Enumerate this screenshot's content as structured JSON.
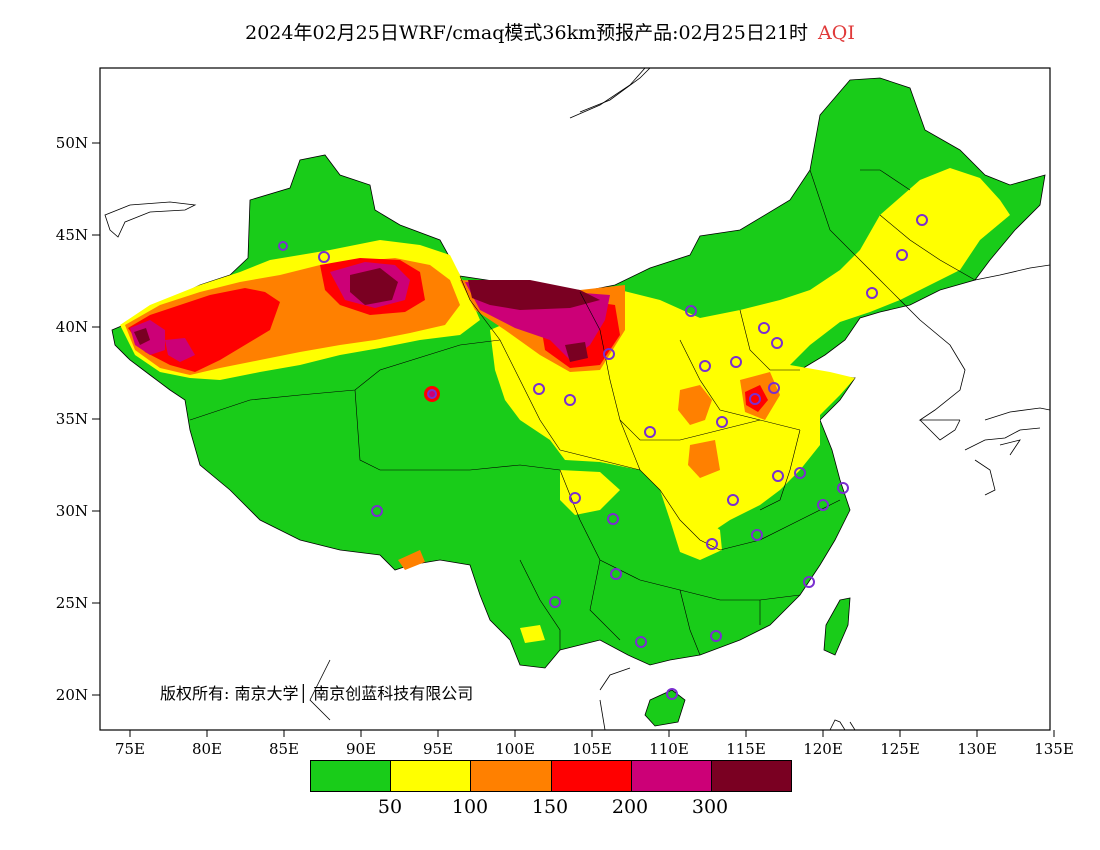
{
  "title": {
    "main": "2024年02月25日WRF/cmaq模式36km预报产品:02月25日21时",
    "product": "AQI"
  },
  "axes": {
    "y_ticks": [
      "50N",
      "45N",
      "40N",
      "35N",
      "30N",
      "25N",
      "20N"
    ],
    "x_ticks": [
      "75E",
      "80E",
      "85E",
      "90E",
      "95E",
      "100E",
      "105E",
      "110E",
      "115E",
      "120E",
      "125E",
      "130E",
      "135E"
    ]
  },
  "copyright": "版权所有: 南京大学│ 南京创蓝科技有限公司",
  "legend": {
    "colors": [
      "#19cc19",
      "#ffff00",
      "#ff8000",
      "#ff0000",
      "#cc0077",
      "#7a0022"
    ],
    "labels": [
      "50",
      "100",
      "150",
      "200",
      "300"
    ]
  },
  "colors": {
    "land_green": "#19cc19",
    "yellow": "#ffff00",
    "orange": "#ff8000",
    "red": "#ff0000",
    "magenta": "#cc0077",
    "maroon": "#7a0022",
    "station_ring": "#7a2fcf"
  }
}
